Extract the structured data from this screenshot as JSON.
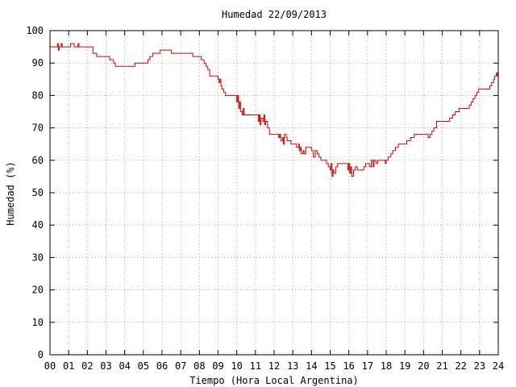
{
  "chart_data": {
    "type": "line",
    "title": "Humedad 22/09/2013",
    "xlabel": "Tiempo (Hora Local Argentina)",
    "ylabel": "Humedad (%)",
    "xlim": [
      0,
      24
    ],
    "ylim": [
      0,
      100
    ],
    "x_ticks": [
      "00",
      "01",
      "02",
      "03",
      "04",
      "05",
      "06",
      "07",
      "08",
      "09",
      "10",
      "11",
      "12",
      "13",
      "14",
      "15",
      "16",
      "17",
      "18",
      "19",
      "20",
      "21",
      "22",
      "23",
      "24"
    ],
    "y_ticks": [
      0,
      10,
      20,
      30,
      40,
      50,
      60,
      70,
      80,
      90,
      100
    ],
    "grid": true,
    "grid_style": "dotted",
    "series": [
      {
        "color": "#d40000",
        "step": true,
        "points": [
          [
            0.0,
            95
          ],
          [
            0.35,
            95
          ],
          [
            0.4,
            96
          ],
          [
            0.45,
            94
          ],
          [
            0.5,
            95
          ],
          [
            0.6,
            96
          ],
          [
            0.65,
            95
          ],
          [
            1.0,
            95
          ],
          [
            1.1,
            96
          ],
          [
            1.3,
            95
          ],
          [
            1.45,
            95
          ],
          [
            1.5,
            96
          ],
          [
            1.55,
            95
          ],
          [
            2.2,
            95
          ],
          [
            2.3,
            93
          ],
          [
            2.5,
            92
          ],
          [
            3.1,
            92
          ],
          [
            3.2,
            91
          ],
          [
            3.4,
            90
          ],
          [
            3.5,
            89
          ],
          [
            4.5,
            89
          ],
          [
            4.55,
            90
          ],
          [
            5.1,
            90
          ],
          [
            5.25,
            91
          ],
          [
            5.35,
            92
          ],
          [
            5.5,
            93
          ],
          [
            5.8,
            93
          ],
          [
            5.9,
            94
          ],
          [
            6.0,
            94
          ],
          [
            6.45,
            94
          ],
          [
            6.5,
            93
          ],
          [
            7.6,
            93
          ],
          [
            7.65,
            92
          ],
          [
            8.05,
            92
          ],
          [
            8.1,
            91
          ],
          [
            8.25,
            90
          ],
          [
            8.35,
            89
          ],
          [
            8.45,
            88
          ],
          [
            8.55,
            86
          ],
          [
            8.95,
            86
          ],
          [
            9.0,
            85
          ],
          [
            9.05,
            84
          ],
          [
            9.1,
            85
          ],
          [
            9.15,
            83
          ],
          [
            9.2,
            82
          ],
          [
            9.3,
            81
          ],
          [
            9.4,
            80
          ],
          [
            9.95,
            80
          ],
          [
            10.0,
            78
          ],
          [
            10.05,
            80
          ],
          [
            10.1,
            76
          ],
          [
            10.15,
            78
          ],
          [
            10.2,
            75
          ],
          [
            10.3,
            74
          ],
          [
            10.35,
            76
          ],
          [
            10.4,
            74
          ],
          [
            11.1,
            74
          ],
          [
            11.15,
            72
          ],
          [
            11.2,
            74
          ],
          [
            11.25,
            71
          ],
          [
            11.3,
            73
          ],
          [
            11.4,
            72
          ],
          [
            11.45,
            74
          ],
          [
            11.5,
            71
          ],
          [
            11.55,
            72
          ],
          [
            11.65,
            70
          ],
          [
            11.75,
            68
          ],
          [
            12.2,
            68
          ],
          [
            12.25,
            67
          ],
          [
            12.3,
            68
          ],
          [
            12.35,
            66
          ],
          [
            12.45,
            67
          ],
          [
            12.5,
            65
          ],
          [
            12.55,
            68
          ],
          [
            12.65,
            67
          ],
          [
            12.7,
            66
          ],
          [
            12.85,
            66
          ],
          [
            12.9,
            65
          ],
          [
            13.1,
            65
          ],
          [
            13.2,
            64
          ],
          [
            13.3,
            65
          ],
          [
            13.35,
            63
          ],
          [
            13.4,
            64
          ],
          [
            13.45,
            62
          ],
          [
            13.55,
            63
          ],
          [
            13.6,
            62
          ],
          [
            13.7,
            64
          ],
          [
            13.9,
            64
          ],
          [
            14.0,
            63
          ],
          [
            14.1,
            61
          ],
          [
            14.2,
            63
          ],
          [
            14.3,
            62
          ],
          [
            14.4,
            61
          ],
          [
            14.5,
            60
          ],
          [
            14.7,
            60
          ],
          [
            14.8,
            59
          ],
          [
            14.9,
            58
          ],
          [
            15.0,
            57
          ],
          [
            15.05,
            59
          ],
          [
            15.1,
            55
          ],
          [
            15.15,
            57
          ],
          [
            15.2,
            56
          ],
          [
            15.3,
            58
          ],
          [
            15.4,
            59
          ],
          [
            15.9,
            59
          ],
          [
            15.95,
            57
          ],
          [
            16.0,
            59
          ],
          [
            16.05,
            56
          ],
          [
            16.1,
            58
          ],
          [
            16.15,
            55
          ],
          [
            16.25,
            57
          ],
          [
            16.35,
            58
          ],
          [
            16.45,
            57
          ],
          [
            16.8,
            58
          ],
          [
            16.9,
            59
          ],
          [
            17.1,
            58
          ],
          [
            17.2,
            60
          ],
          [
            17.3,
            58
          ],
          [
            17.35,
            60
          ],
          [
            17.45,
            59
          ],
          [
            17.55,
            60
          ],
          [
            17.9,
            60
          ],
          [
            17.95,
            59
          ],
          [
            18.0,
            60
          ],
          [
            18.1,
            61
          ],
          [
            18.25,
            62
          ],
          [
            18.35,
            63
          ],
          [
            18.5,
            64
          ],
          [
            18.65,
            65
          ],
          [
            19.05,
            65
          ],
          [
            19.1,
            66
          ],
          [
            19.3,
            67
          ],
          [
            19.5,
            68
          ],
          [
            20.2,
            68
          ],
          [
            20.25,
            67
          ],
          [
            20.35,
            68
          ],
          [
            20.45,
            69
          ],
          [
            20.55,
            70
          ],
          [
            20.7,
            72
          ],
          [
            21.3,
            72
          ],
          [
            21.4,
            73
          ],
          [
            21.55,
            74
          ],
          [
            21.7,
            75
          ],
          [
            21.9,
            76
          ],
          [
            22.4,
            76
          ],
          [
            22.45,
            77
          ],
          [
            22.55,
            78
          ],
          [
            22.65,
            79
          ],
          [
            22.75,
            80
          ],
          [
            22.85,
            81
          ],
          [
            22.95,
            82
          ],
          [
            23.5,
            82
          ],
          [
            23.55,
            83
          ],
          [
            23.65,
            84
          ],
          [
            23.75,
            85
          ],
          [
            23.8,
            86
          ],
          [
            23.9,
            87
          ],
          [
            23.95,
            86
          ],
          [
            24.0,
            87
          ]
        ]
      }
    ]
  }
}
